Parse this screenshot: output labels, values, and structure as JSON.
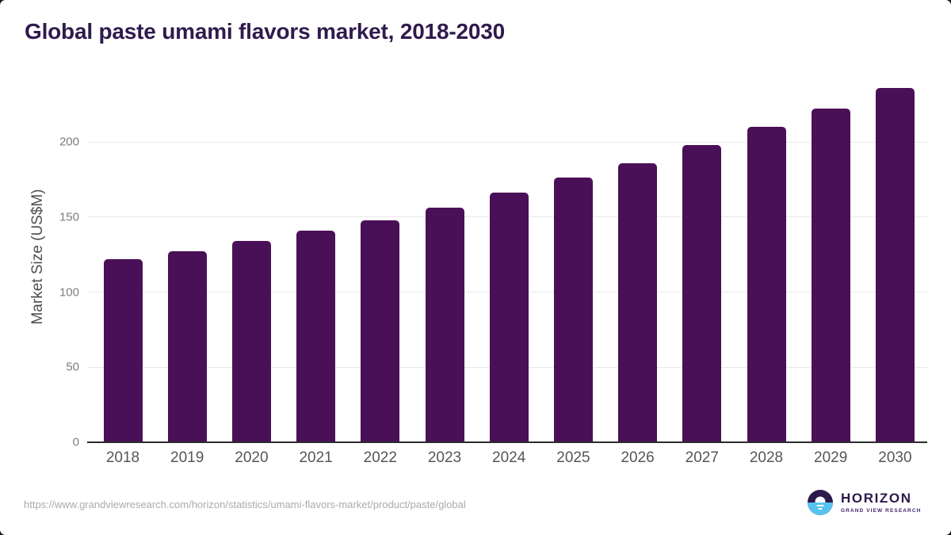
{
  "header": {
    "title": "Global paste umami flavors market, 2018-2030"
  },
  "chart_data": {
    "type": "bar",
    "title": "Global paste umami flavors market, 2018-2030",
    "categories": [
      "2018",
      "2019",
      "2020",
      "2021",
      "2022",
      "2023",
      "2024",
      "2025",
      "2026",
      "2027",
      "2028",
      "2029",
      "2030"
    ],
    "values": [
      122,
      127,
      134,
      141,
      148,
      156,
      166,
      176,
      186,
      198,
      210,
      222,
      236
    ],
    "xlabel": "",
    "ylabel": "Market Size (US$M)",
    "ylim": [
      0,
      250
    ],
    "yticks": [
      0,
      50,
      100,
      150,
      200
    ],
    "grid": "horizontal-light",
    "legend": "none",
    "bar_color": "#4a1057"
  },
  "footer": {
    "source_url": "https://www.grandviewresearch.com/horizon/statistics/umami-flavors-market/product/paste/global",
    "logo": {
      "title": "HORIZON",
      "subtitle": "GRAND VIEW RESEARCH"
    }
  },
  "colors": {
    "title_text": "#2f1a4d",
    "bar": "#4a1057",
    "axis_line": "#2b2b2b",
    "gridline": "#e8e8e8",
    "y_tick_text": "#7e7e7e",
    "x_tick_text": "#565656",
    "source_text": "#ababab",
    "logo_purple": "#2b1a4a",
    "logo_blue": "#58c3ee"
  }
}
